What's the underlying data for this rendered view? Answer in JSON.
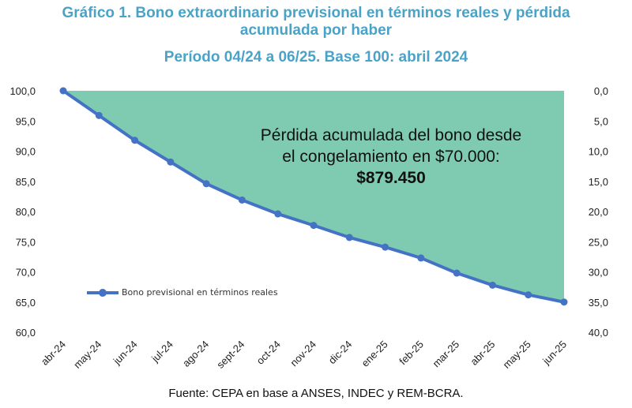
{
  "title_line1": "Gráfico 1. Bono extraordinario previsional en términos reales y pérdida",
  "title_line2": "acumulada por haber",
  "subtitle": "Período 04/24 a 06/25. Base 100: abril 2024",
  "annotation": {
    "line1": "Pérdida acumulada del bono desde",
    "line2": "el congelamiento en $70.000:",
    "amount": "$879.450"
  },
  "source": "Fuente: CEPA en base a ANSES, INDEC y REM-BCRA.",
  "colors": {
    "line": "#4472c4",
    "area": "#7fcbb2",
    "title": "#4aa3c7"
  },
  "chart_data": {
    "type": "line",
    "categories": [
      "abr-24",
      "may-24",
      "jun-24",
      "jul-24",
      "ago-24",
      "sept-24",
      "oct-24",
      "nov-24",
      "dic-24",
      "ene-25",
      "feb-25",
      "mar-25",
      "abr-25",
      "may-25",
      "jun-25"
    ],
    "series": [
      {
        "name": "Bono previsional en términos reales",
        "values": [
          100.0,
          95.9,
          91.8,
          88.2,
          84.6,
          81.9,
          79.6,
          77.7,
          75.7,
          74.1,
          72.3,
          69.8,
          67.8,
          66.2,
          65.0
        ]
      }
    ],
    "y_left": {
      "min": 60,
      "max": 100,
      "ticks": [
        "100,0",
        "95,0",
        "90,0",
        "85,0",
        "80,0",
        "75,0",
        "70,0",
        "65,0",
        "60,0"
      ]
    },
    "y_right": {
      "min": 0,
      "max": 40,
      "ticks": [
        "0,0",
        "5,0",
        "10,0",
        "15,0",
        "20,0",
        "25,0",
        "30,0",
        "35,0",
        "40,0"
      ],
      "reversed": true
    },
    "shaded_area": "loss between 100 and the series",
    "legend_position": "bottom-left inside plot",
    "grid": false
  }
}
